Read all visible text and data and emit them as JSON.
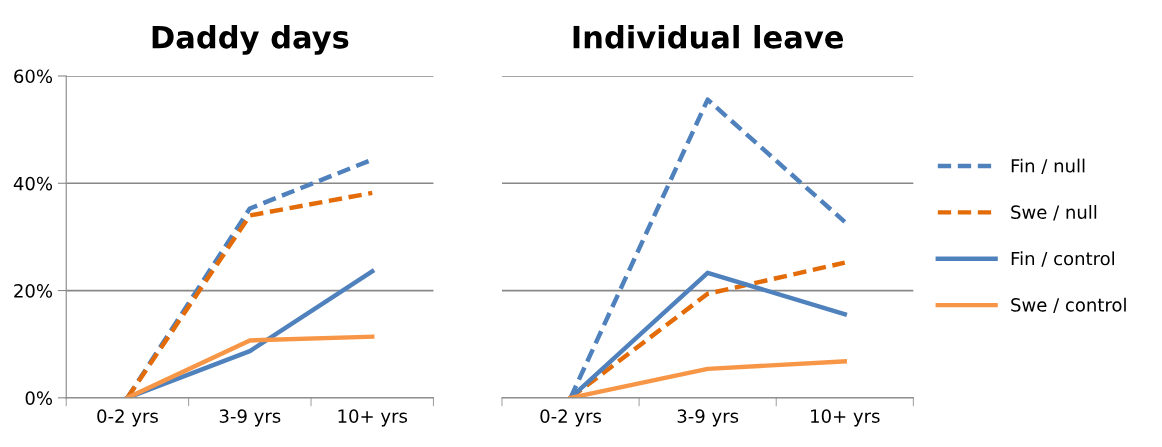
{
  "chart_data": [
    {
      "type": "line",
      "title": "Daddy days",
      "categories": [
        "0-2 yrs",
        "3-9 yrs",
        "10+ yrs"
      ],
      "ylim": [
        0,
        60
      ],
      "yticks": [
        {
          "value": 0,
          "label": "0%"
        },
        {
          "value": 20,
          "label": "20%"
        },
        {
          "value": 40,
          "label": "40%"
        },
        {
          "value": 60,
          "label": "60%"
        }
      ],
      "grid": "y",
      "marker": "none",
      "series": [
        {
          "color": "#4f81bd",
          "line_style": "dashed",
          "values": [
            0,
            35.3,
            44.4
          ]
        },
        {
          "color": "#e36c09",
          "line_style": "dashed",
          "values": [
            0,
            34.0,
            38.2
          ]
        },
        {
          "color": "#4f81bd",
          "line_style": "solid",
          "values": [
            0,
            8.7,
            23.6
          ]
        },
        {
          "color": "#f79646",
          "line_style": "solid",
          "values": [
            0,
            10.7,
            11.4
          ]
        }
      ]
    },
    {
      "type": "line",
      "title": "Individual leave",
      "categories": [
        "0-2 yrs",
        "3-9 yrs",
        "10+ yrs"
      ],
      "ylim": [
        0,
        60
      ],
      "yticks": [
        0,
        20,
        40,
        60
      ],
      "tick_labels": "x",
      "grid": "y",
      "legend": "right",
      "marker": "none",
      "series": [
        {
          "name": "Fin / null",
          "color": "#4f81bd",
          "line_style": "dashed",
          "values": [
            0,
            55.6,
            32.8
          ]
        },
        {
          "name": "Swe / null",
          "color": "#e36c09",
          "line_style": "dashed",
          "values": [
            0,
            19.4,
            25.2
          ]
        },
        {
          "name": "Fin / control",
          "color": "#4f81bd",
          "line_style": "solid",
          "values": [
            0,
            23.3,
            15.6
          ]
        },
        {
          "name": "Swe / control",
          "color": "#f79646",
          "line_style": "solid",
          "values": [
            0,
            5.4,
            6.8
          ]
        }
      ]
    }
  ]
}
